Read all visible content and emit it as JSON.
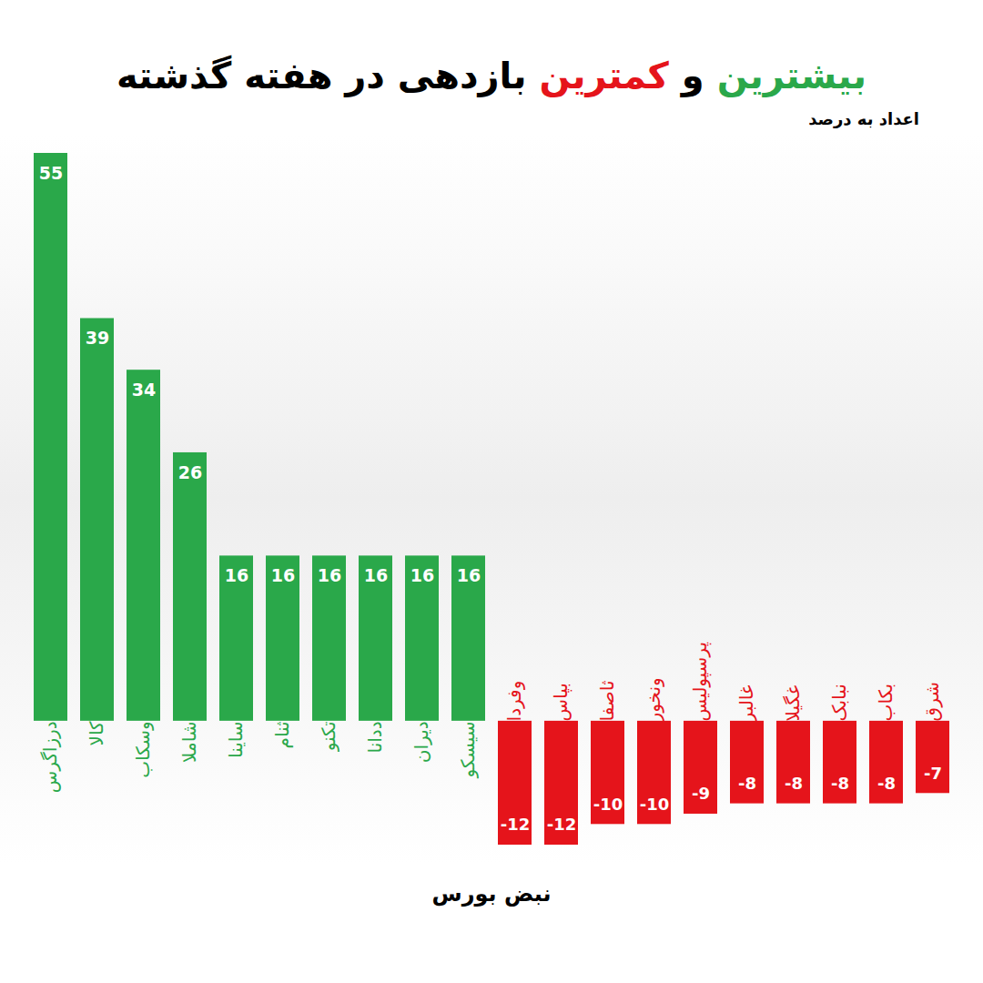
{
  "chart_data": {
    "type": "bar",
    "title": "بیشترین و کمترین بازدهی در هفته گذشته",
    "subtitle": "اعداد به درصد",
    "brand": "نبض بورس",
    "categories": [
      "درزاگرس",
      "کالا",
      "وسکاب",
      "شاملا",
      "ساینا",
      "ثنام",
      "تکنو",
      "ددانا",
      "دیران",
      "سیسکو",
      "وفردا",
      "بپاس",
      "ثاصفا",
      "ونخور",
      "پرسپولیس",
      "غالبر",
      "غگیلا",
      "نبابک",
      "بکاب",
      "شرق"
    ],
    "values": [
      55,
      39,
      34,
      26,
      16,
      16,
      16,
      16,
      16,
      16,
      -12,
      -12,
      -10,
      -10,
      -9,
      -8,
      -8,
      -8,
      -8,
      -7
    ],
    "colors": [
      "#2aa84a",
      "#2aa84a",
      "#2aa84a",
      "#2aa84a",
      "#2aa84a",
      "#2aa84a",
      "#2aa84a",
      "#2aa84a",
      "#2aa84a",
      "#2aa84a",
      "#e5141b",
      "#e5141b",
      "#e5141b",
      "#e5141b",
      "#e5141b",
      "#e5141b",
      "#e5141b",
      "#e5141b",
      "#e5141b",
      "#e5141b"
    ],
    "ylim": [
      -12,
      55
    ],
    "data_labels": true,
    "tick_labels": false
  }
}
